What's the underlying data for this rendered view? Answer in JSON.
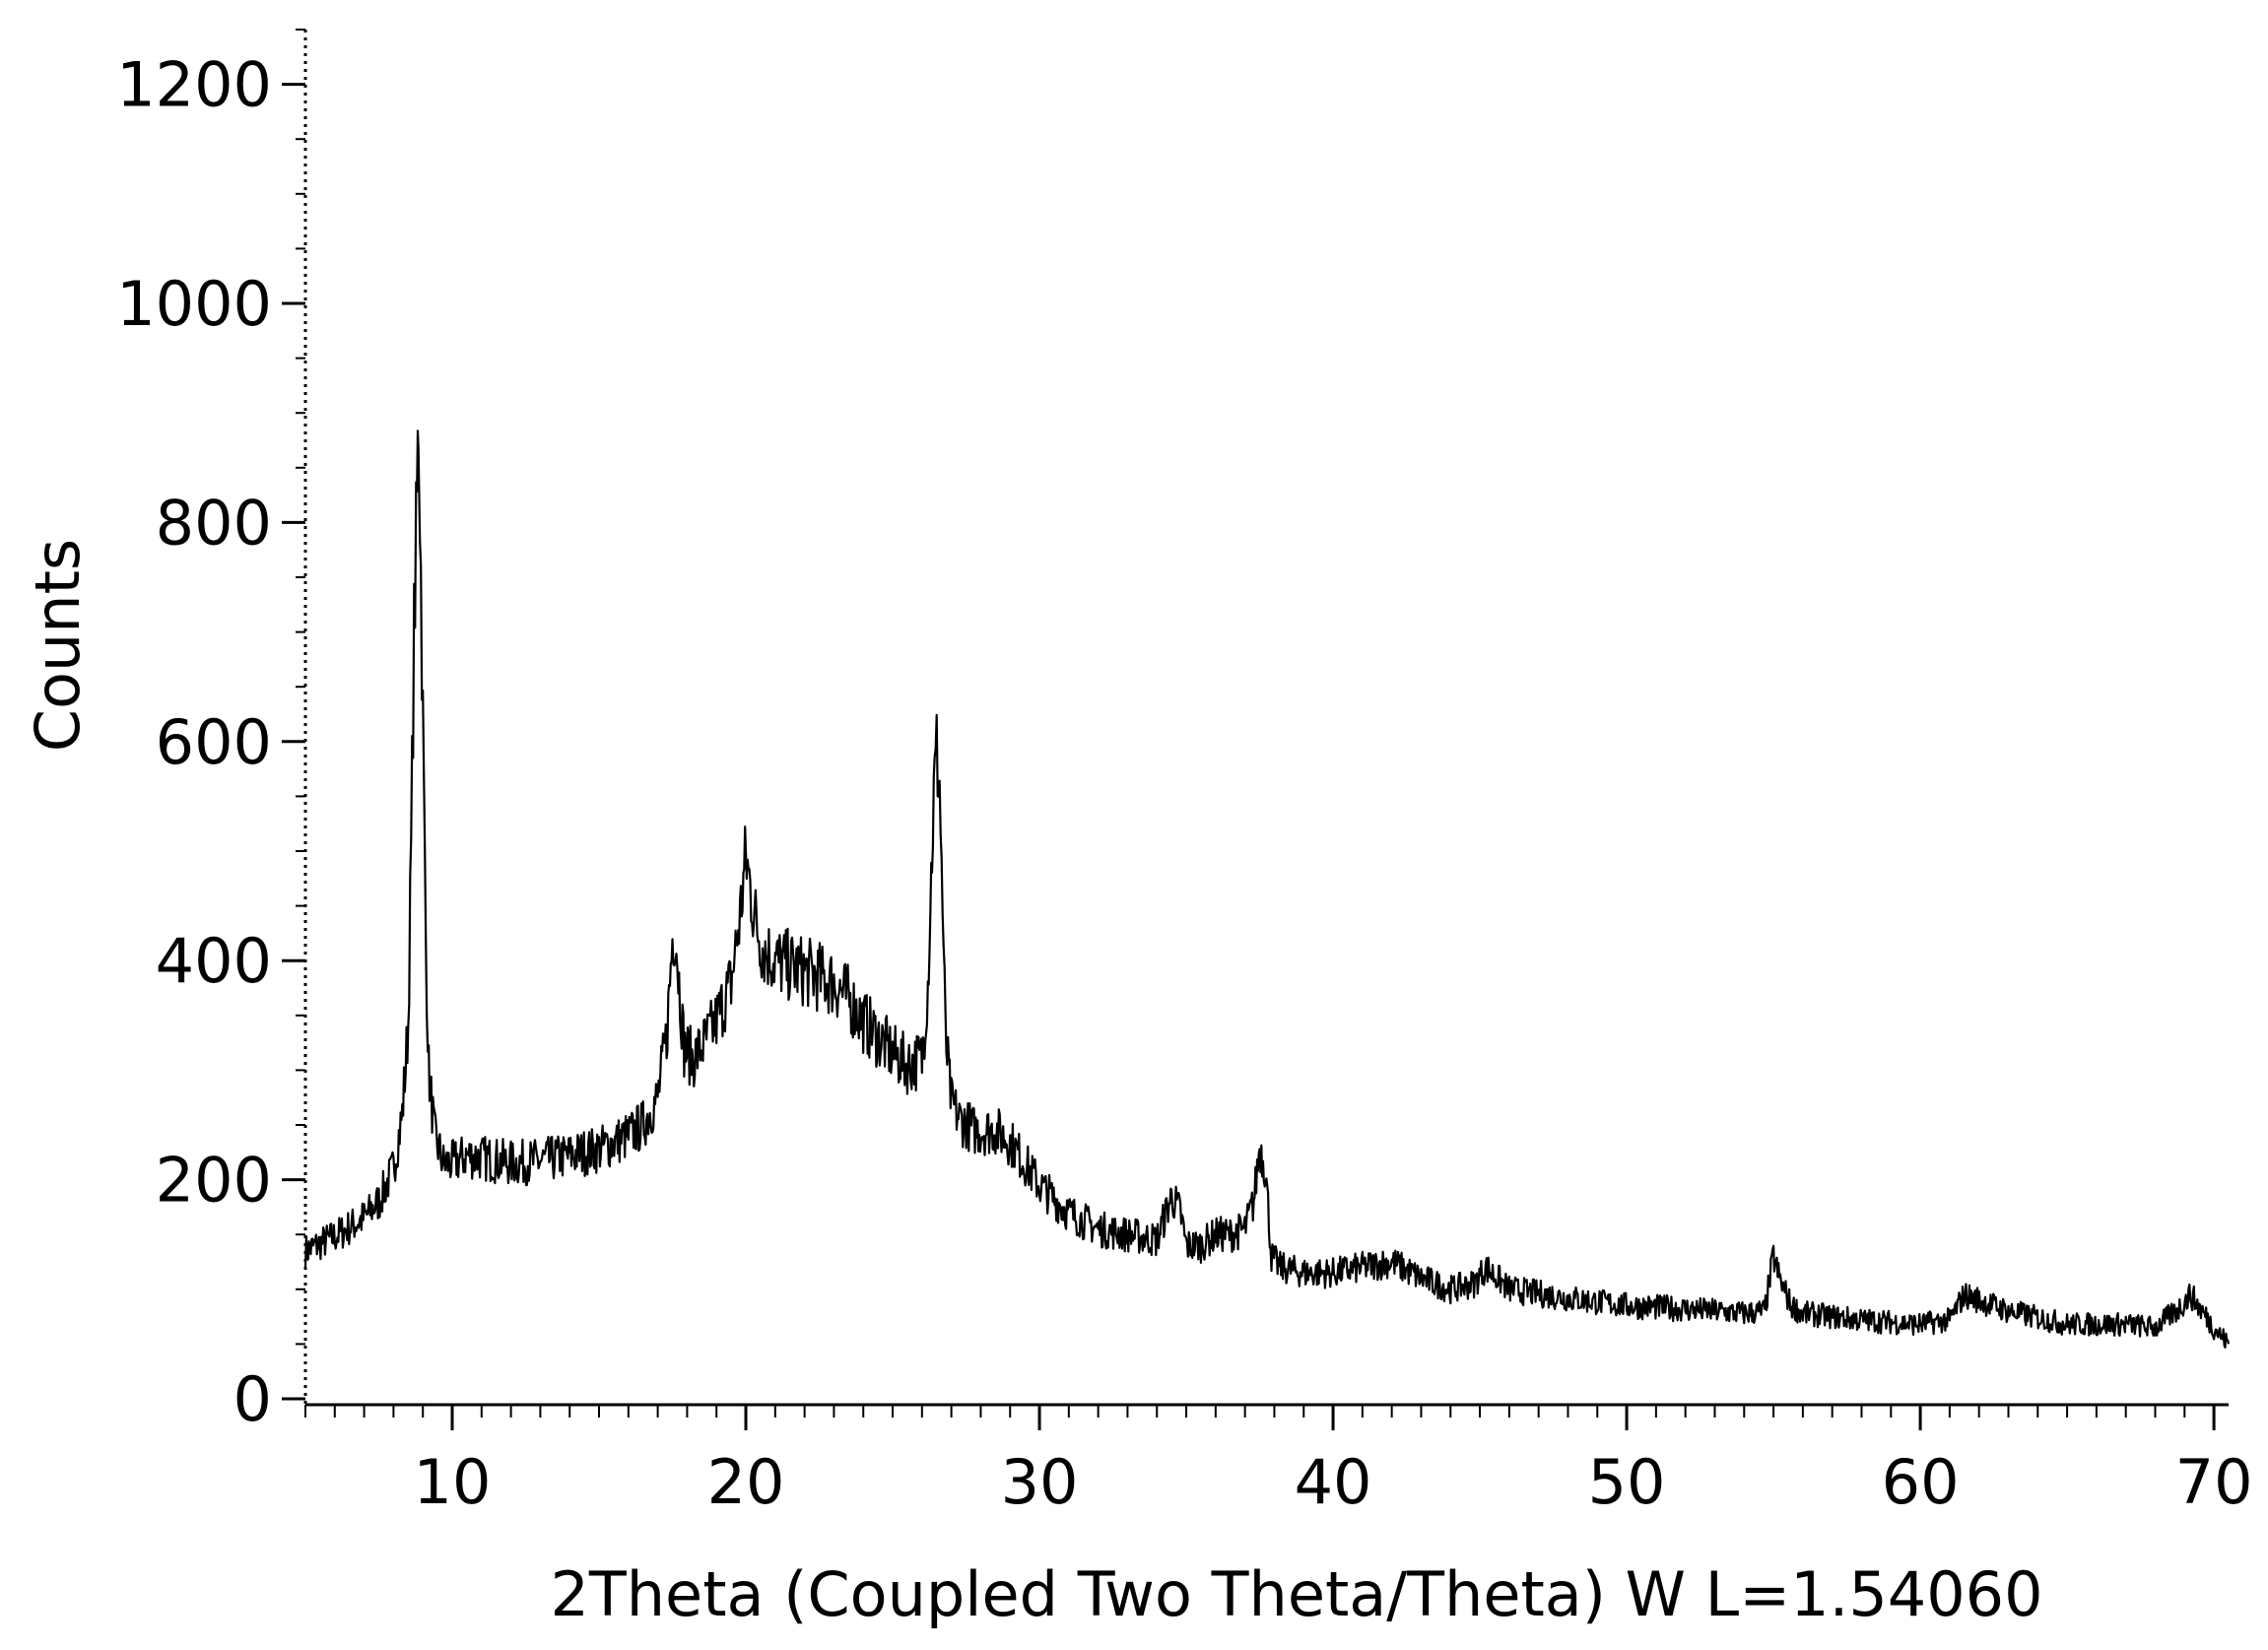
{
  "chart_data": {
    "type": "line",
    "title": "",
    "xlabel": "2Theta (Coupled Two Theta/Theta) W L=1.54060",
    "ylabel": "Counts",
    "xlim": [
      5,
      70.5
    ],
    "ylim": [
      0,
      1250
    ],
    "x_ticks": [
      10,
      20,
      30,
      40,
      50,
      60,
      70
    ],
    "x_tick_labels": [
      "10",
      "20",
      "30",
      "40",
      "50",
      "60",
      "70"
    ],
    "y_ticks": [
      0,
      200,
      400,
      600,
      800,
      1000,
      1200
    ],
    "y_tick_labels": [
      "0",
      "200",
      "400",
      "600",
      "800",
      "1000",
      "1200"
    ],
    "grid": false,
    "series": [
      {
        "color": "#000000",
        "x": [
          5.0,
          6.0,
          7.0,
          7.5,
          8.0,
          8.3,
          8.5,
          8.6,
          8.7,
          8.8,
          8.85,
          8.9,
          9.0,
          9.1,
          9.2,
          9.4,
          9.7,
          10.0,
          10.5,
          11.0,
          12.0,
          13.0,
          14.0,
          15.0,
          16.0,
          16.5,
          17.0,
          17.3,
          17.5,
          17.6,
          17.7,
          17.9,
          18.2,
          18.6,
          19.0,
          19.5,
          19.8,
          20.0,
          20.3,
          20.6,
          21.0,
          22.0,
          23.0,
          23.5,
          24.0,
          24.5,
          25.0,
          25.5,
          26.0,
          26.2,
          26.4,
          26.5,
          26.6,
          26.7,
          26.8,
          27.0,
          27.3,
          27.8,
          28.5,
          29.0,
          30.0,
          31.0,
          32.0,
          33.0,
          34.0,
          34.5,
          34.8,
          35.0,
          35.5,
          36.0,
          36.5,
          37.0,
          37.3,
          37.5,
          37.7,
          37.9,
          38.2,
          39.0,
          40.0,
          41.0,
          42.0,
          43.0,
          44.0,
          44.8,
          45.2,
          46.0,
          48.0,
          50.0,
          52.0,
          54.0,
          54.7,
          55.0,
          55.2,
          55.6,
          56.0,
          58.0,
          60.0,
          61.0,
          61.5,
          62.0,
          63.0,
          65.0,
          67.0,
          68.0,
          68.8,
          69.2,
          70.0,
          70.5
        ],
        "y": [
          135,
          148,
          165,
          180,
          210,
          260,
          340,
          500,
          700,
          820,
          900,
          820,
          620,
          420,
          300,
          240,
          215,
          215,
          222,
          220,
          215,
          217,
          222,
          228,
          240,
          250,
          275,
          330,
          420,
          430,
          390,
          320,
          310,
          325,
          345,
          380,
          440,
          495,
          440,
          410,
          400,
          390,
          380,
          365,
          345,
          330,
          315,
          305,
          310,
          380,
          550,
          590,
          560,
          450,
          330,
          270,
          255,
          245,
          245,
          235,
          195,
          170,
          155,
          150,
          145,
          185,
          170,
          140,
          140,
          150,
          150,
          155,
          180,
          230,
          210,
          130,
          120,
          115,
          115,
          120,
          125,
          110,
          100,
          105,
          120,
          100,
          92,
          85,
          82,
          78,
          80,
          130,
          110,
          85,
          78,
          72,
          68,
          72,
          95,
          90,
          80,
          68,
          68,
          65,
          82,
          95,
          65,
          50
        ]
      }
    ]
  }
}
